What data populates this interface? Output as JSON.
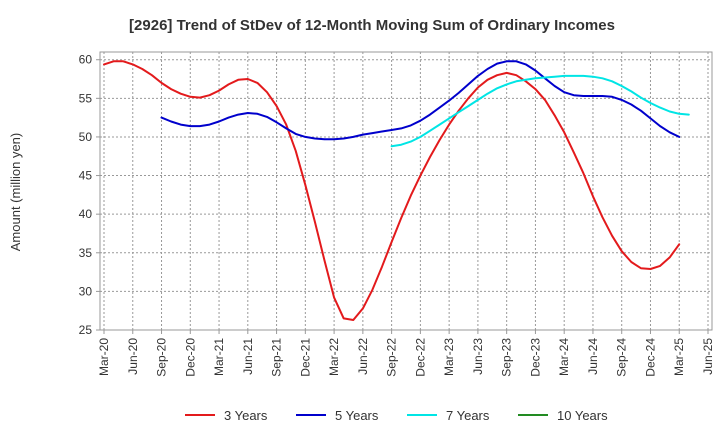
{
  "chart_data": {
    "type": "line",
    "title": "[2926]  Trend of StDev of 12-Month Moving Sum of Ordinary Incomes",
    "xlabel": "",
    "ylabel": "Amount (million yen)",
    "ylim": [
      25,
      61
    ],
    "yticks": [
      25,
      30,
      35,
      40,
      45,
      50,
      55,
      60
    ],
    "xticks": [
      "Mar-20",
      "Jun-20",
      "Sep-20",
      "Dec-20",
      "Mar-21",
      "Jun-21",
      "Sep-21",
      "Dec-21",
      "Mar-22",
      "Jun-22",
      "Sep-22",
      "Dec-22",
      "Mar-23",
      "Jun-23",
      "Sep-23",
      "Dec-23",
      "Mar-24",
      "Jun-24",
      "Sep-24",
      "Dec-24",
      "Mar-25",
      "Jun-25"
    ],
    "grid": true,
    "legend_position": "bottom",
    "series": [
      {
        "name": "3 Years",
        "color": "#e31a1c",
        "start_index": 0,
        "values": [
          59.4,
          59.8,
          59.8,
          59.4,
          58.8,
          58.0,
          57.0,
          56.2,
          55.6,
          55.2,
          55.1,
          55.4,
          56.0,
          56.8,
          57.4,
          57.5,
          57.0,
          55.8,
          54.0,
          51.6,
          48.2,
          43.8,
          39.0,
          34.0,
          29.2,
          26.5,
          26.3,
          27.8,
          30.2,
          33.2,
          36.4,
          39.5,
          42.4,
          45.0,
          47.4,
          49.6,
          51.6,
          53.4,
          55.0,
          56.4,
          57.4,
          58.0,
          58.3,
          58.0,
          57.2,
          56.2,
          54.8,
          52.8,
          50.6,
          48.0,
          45.3,
          42.3,
          39.6,
          37.2,
          35.2,
          33.8,
          33.0,
          32.9,
          33.3,
          34.4,
          36.1
        ]
      },
      {
        "name": "5 Years",
        "color": "#0000cc",
        "start_index": 6,
        "values": [
          52.5,
          52.0,
          51.6,
          51.4,
          51.4,
          51.6,
          52.0,
          52.5,
          52.9,
          53.1,
          53.0,
          52.6,
          51.9,
          51.1,
          50.4,
          50.0,
          49.8,
          49.7,
          49.7,
          49.8,
          50.0,
          50.3,
          50.5,
          50.7,
          50.9,
          51.1,
          51.5,
          52.1,
          52.9,
          53.8,
          54.7,
          55.7,
          56.8,
          57.9,
          58.8,
          59.5,
          59.8,
          59.8,
          59.4,
          58.6,
          57.6,
          56.6,
          55.8,
          55.4,
          55.3,
          55.3,
          55.3,
          55.2,
          54.8,
          54.2,
          53.4,
          52.4,
          51.4,
          50.6,
          50.0
        ]
      },
      {
        "name": "7 Years",
        "color": "#00e5e5",
        "start_index": 30,
        "values": [
          48.8,
          49.0,
          49.4,
          50.0,
          50.8,
          51.6,
          52.4,
          53.2,
          54.0,
          54.8,
          55.6,
          56.3,
          56.8,
          57.2,
          57.4,
          57.6,
          57.7,
          57.8,
          57.9,
          57.9,
          57.9,
          57.8,
          57.6,
          57.2,
          56.6,
          55.9,
          55.1,
          54.4,
          53.8,
          53.3,
          53.0,
          52.9
        ]
      },
      {
        "name": "10 Years",
        "color": "#228b22",
        "start_index": 0,
        "values": []
      }
    ]
  }
}
